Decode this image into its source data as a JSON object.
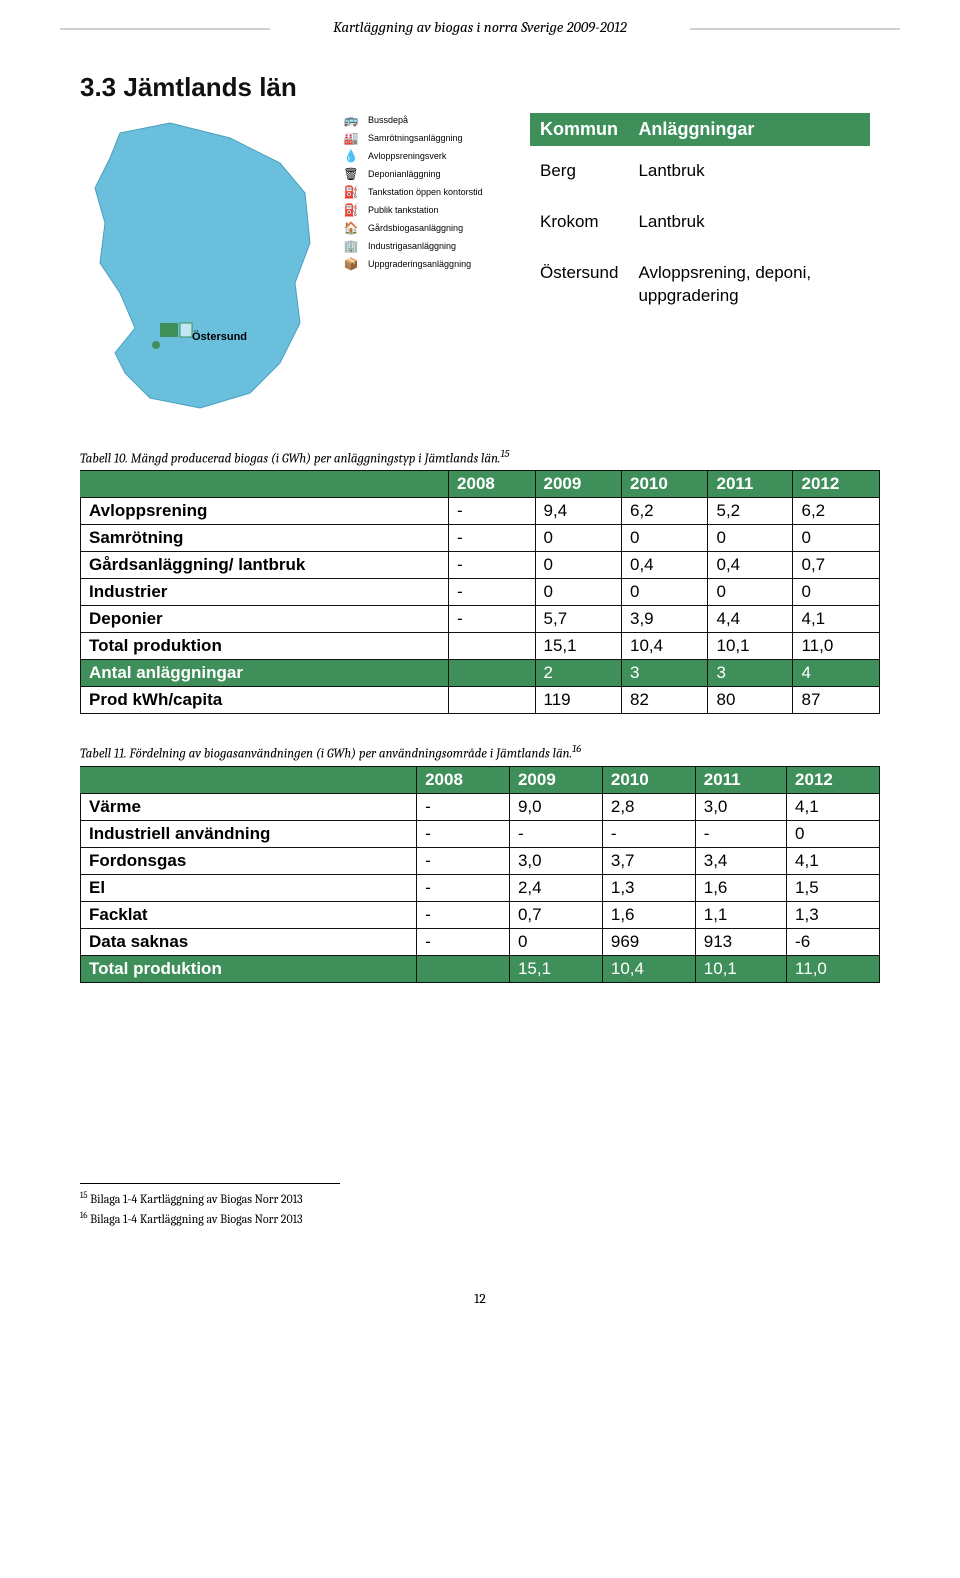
{
  "header": "Kartläggning av biogas i norra Sverige 2009-2012",
  "section_title": "3.3  Jämtlands län",
  "map": {
    "fill": "#6abfdc",
    "stroke": "#4a9fc0",
    "marker_fill": "#3e8f5a",
    "city_label": "Östersund"
  },
  "legend": [
    {
      "icon": "🚌",
      "label": "Bussdepå"
    },
    {
      "icon": "🏭",
      "label": "Samrötningsanläggning"
    },
    {
      "icon": "💧",
      "label": "Avloppsreningsverk"
    },
    {
      "icon": "🗑",
      "label": "Deponianläggning"
    },
    {
      "icon": "⛽",
      "label": "Tankstation öppen kontorstid"
    },
    {
      "icon": "⛽",
      "label": "Publik tankstation"
    },
    {
      "icon": "🏠",
      "label": "Gårdsbiogasanläggning"
    },
    {
      "icon": "🏢",
      "label": "Industrigasanläggning"
    },
    {
      "icon": "📦",
      "label": "Uppgraderingsanläggning"
    }
  ],
  "kommun_table": {
    "headers": [
      "Kommun",
      "Anläggningar"
    ],
    "rows": [
      [
        "Berg",
        "Lantbruk"
      ],
      [
        "Krokom",
        "Lantbruk"
      ],
      [
        "Östersund",
        "Avloppsrening, deponi, uppgradering"
      ]
    ]
  },
  "table10": {
    "caption_prefix": "Tabell 10. Mängd producerad biogas (i GWh) per anläggningstyp i Jämtlands län.",
    "caption_sup": "15",
    "headers": [
      "",
      "2008",
      "2009",
      "2010",
      "2011",
      "2012"
    ],
    "rows": [
      {
        "hl": false,
        "cells": [
          "Avloppsrening",
          "-",
          "9,4",
          "6,2",
          "5,2",
          "6,2"
        ]
      },
      {
        "hl": false,
        "cells": [
          "Samrötning",
          "-",
          "0",
          "0",
          "0",
          "0"
        ]
      },
      {
        "hl": false,
        "cells": [
          "Gårdsanläggning/ lantbruk",
          "-",
          "0",
          "0,4",
          "0,4",
          "0,7"
        ]
      },
      {
        "hl": false,
        "cells": [
          "Industrier",
          "-",
          "0",
          "0",
          "0",
          "0"
        ]
      },
      {
        "hl": false,
        "cells": [
          "Deponier",
          "-",
          "5,7",
          "3,9",
          "4,4",
          "4,1"
        ]
      },
      {
        "hl": false,
        "cells": [
          "Total produktion",
          "",
          "15,1",
          "10,4",
          "10,1",
          "11,0"
        ]
      },
      {
        "hl": true,
        "cells": [
          "Antal anläggningar",
          "",
          "2",
          "3",
          "3",
          "4"
        ]
      },
      {
        "hl": false,
        "cells": [
          "Prod kWh/capita",
          "",
          "119",
          "82",
          "80",
          "87"
        ]
      }
    ]
  },
  "table11": {
    "caption_prefix": "Tabell 11. Fördelning av biogasanvändningen (i GWh) per användningsområde  i Jämtlands län.",
    "caption_sup": "16",
    "headers": [
      "",
      "2008",
      "2009",
      "2010",
      "2011",
      "2012"
    ],
    "rows": [
      {
        "hl": false,
        "cells": [
          "Värme",
          "-",
          "9,0",
          "2,8",
          "3,0",
          "4,1"
        ]
      },
      {
        "hl": false,
        "cells": [
          "Industriell användning",
          "-",
          "-",
          "-",
          "-",
          "0"
        ]
      },
      {
        "hl": false,
        "cells": [
          "Fordonsgas",
          "-",
          "3,0",
          "3,7",
          "3,4",
          "4,1"
        ]
      },
      {
        "hl": false,
        "cells": [
          "El",
          "-",
          "2,4",
          "1,3",
          "1,6",
          "1,5"
        ]
      },
      {
        "hl": false,
        "cells": [
          "Facklat",
          "-",
          "0,7",
          "1,6",
          "1,1",
          "1,3"
        ]
      },
      {
        "hl": false,
        "cells": [
          "Data saknas",
          "-",
          "0",
          "969",
          "913",
          "-6"
        ]
      },
      {
        "hl": true,
        "cells": [
          "Total produktion",
          "",
          "15,1",
          "10,4",
          "10,1",
          "11,0"
        ]
      }
    ]
  },
  "footnotes": [
    {
      "num": "15",
      "text": "Bilaga 1-4 Kartläggning av Biogas Norr 2013"
    },
    {
      "num": "16",
      "text": "Bilaga 1-4 Kartläggning av Biogas Norr 2013"
    }
  ],
  "page_number": "12",
  "colors": {
    "green": "#3e8f5a",
    "border": "#111111"
  }
}
